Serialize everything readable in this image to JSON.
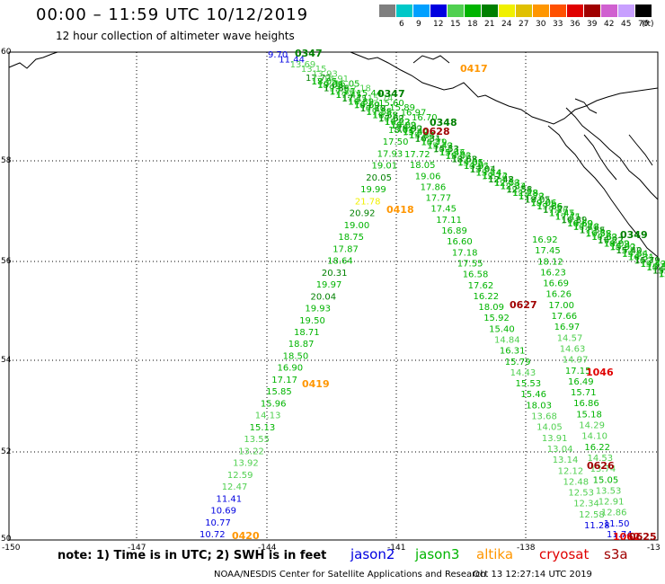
{
  "header": {
    "title": "00:00 – 11:59 UTC 10/12/2019",
    "subtitle": "12 hour collection of altimeter wave heights"
  },
  "legend": {
    "unit": "(ft)",
    "items": [
      {
        "label": "3",
        "color": "#7f7f7f"
      },
      {
        "label": "6",
        "color": "#00c8c8"
      },
      {
        "label": "9",
        "color": "#00a0ff"
      },
      {
        "label": "12",
        "color": "#0000e0"
      },
      {
        "label": "15",
        "color": "#50d050"
      },
      {
        "label": "18",
        "color": "#00b400"
      },
      {
        "label": "21",
        "color": "#008000"
      },
      {
        "label": "24",
        "color": "#f0f000"
      },
      {
        "label": "27",
        "color": "#e0c000"
      },
      {
        "label": "30",
        "color": "#ff9600"
      },
      {
        "label": "33",
        "color": "#ff5000"
      },
      {
        "label": "36",
        "color": "#e00000"
      },
      {
        "label": "39",
        "color": "#a00000"
      },
      {
        "label": "42",
        "color": "#d060d0"
      },
      {
        "label": "45",
        "color": "#c8a0ff"
      },
      {
        "label": "70",
        "color": "#000000"
      }
    ]
  },
  "axes": {
    "lon_labels": [
      "-150",
      "-147",
      "-144",
      "-141",
      "-138",
      "-13"
    ],
    "lat_labels": [
      "60",
      "58",
      "56",
      "54",
      "52",
      "50"
    ]
  },
  "tracks": {
    "track_a": {
      "time": "0420",
      "time_color": "#ff9600",
      "values": [
        {
          "v": "10.72",
          "c": "#0000e0"
        },
        {
          "v": "10.77",
          "c": "#0000e0"
        },
        {
          "v": "10.69",
          "c": "#0000e0"
        },
        {
          "v": "11.41",
          "c": "#0000e0"
        },
        {
          "v": "12.47",
          "c": "#50d050"
        },
        {
          "v": "12.59",
          "c": "#50d050"
        },
        {
          "v": "13.92",
          "c": "#50d050"
        },
        {
          "v": "13.22",
          "c": "#50d050"
        },
        {
          "v": "13.55",
          "c": "#50d050"
        },
        {
          "v": "15.13",
          "c": "#00b400"
        },
        {
          "v": "14.13",
          "c": "#50d050"
        },
        {
          "v": "15.96",
          "c": "#00b400"
        },
        {
          "v": "15.85",
          "c": "#00b400"
        },
        {
          "v": "17.17",
          "c": "#00b400"
        },
        {
          "v": "16.90",
          "c": "#00b400"
        },
        {
          "v": "18.50",
          "c": "#00b400"
        },
        {
          "v": "18.87",
          "c": "#00b400"
        },
        {
          "v": "18.71",
          "c": "#00b400"
        },
        {
          "v": "19.50",
          "c": "#00b400"
        },
        {
          "v": "19.93",
          "c": "#00b400"
        },
        {
          "v": "20.04",
          "c": "#008000"
        },
        {
          "v": "19.97",
          "c": "#00b400"
        },
        {
          "v": "20.31",
          "c": "#008000"
        },
        {
          "v": "18.64",
          "c": "#00b400"
        },
        {
          "v": "17.87",
          "c": "#00b400"
        },
        {
          "v": "18.75",
          "c": "#00b400"
        },
        {
          "v": "19.00",
          "c": "#00b400"
        },
        {
          "v": "20.92",
          "c": "#008000"
        },
        {
          "v": "21.78",
          "c": "#f0f000"
        },
        {
          "v": "19.99",
          "c": "#00b400"
        },
        {
          "v": "20.05",
          "c": "#008000"
        },
        {
          "v": "19.01",
          "c": "#00b400"
        },
        {
          "v": "17.93",
          "c": "#00b400"
        },
        {
          "v": "17.50",
          "c": "#00b400"
        },
        {
          "v": "18.01",
          "c": "#00b400"
        }
      ]
    },
    "track_a_times": [
      {
        "t": "0419",
        "c": "#ff9600"
      },
      {
        "t": "0418",
        "c": "#ff9600"
      }
    ],
    "track_b": {
      "values": [
        {
          "v": "17.72",
          "c": "#00b400"
        },
        {
          "v": "18.05",
          "c": "#00b400"
        },
        {
          "v": "19.06",
          "c": "#00b400"
        },
        {
          "v": "17.86",
          "c": "#00b400"
        },
        {
          "v": "17.77",
          "c": "#00b400"
        },
        {
          "v": "17.45",
          "c": "#00b400"
        },
        {
          "v": "17.11",
          "c": "#00b400"
        },
        {
          "v": "16.89",
          "c": "#00b400"
        },
        {
          "v": "16.60",
          "c": "#00b400"
        },
        {
          "v": "17.18",
          "c": "#00b400"
        },
        {
          "v": "17.55",
          "c": "#00b400"
        },
        {
          "v": "16.58",
          "c": "#00b400"
        },
        {
          "v": "17.62",
          "c": "#00b400"
        },
        {
          "v": "16.22",
          "c": "#00b400"
        },
        {
          "v": "18.09",
          "c": "#00b400"
        },
        {
          "v": "15.92",
          "c": "#00b400"
        },
        {
          "v": "15.40",
          "c": "#00b400"
        },
        {
          "v": "14.84",
          "c": "#50d050"
        },
        {
          "v": "16.31",
          "c": "#00b400"
        },
        {
          "v": "15.79",
          "c": "#00b400"
        },
        {
          "v": "14.43",
          "c": "#50d050"
        },
        {
          "v": "15.53",
          "c": "#00b400"
        },
        {
          "v": "15.46",
          "c": "#00b400"
        },
        {
          "v": "18.03",
          "c": "#00b400"
        },
        {
          "v": "13.68",
          "c": "#50d050"
        },
        {
          "v": "14.05",
          "c": "#50d050"
        },
        {
          "v": "13.91",
          "c": "#50d050"
        },
        {
          "v": "13.04",
          "c": "#50d050"
        },
        {
          "v": "13.14",
          "c": "#50d050"
        },
        {
          "v": "12.12",
          "c": "#50d050"
        },
        {
          "v": "12.48",
          "c": "#50d050"
        },
        {
          "v": "12.53",
          "c": "#50d050"
        },
        {
          "v": "12.34",
          "c": "#50d050"
        },
        {
          "v": "12.58",
          "c": "#50d050"
        },
        {
          "v": "11.28",
          "c": "#0000e0"
        }
      ],
      "time": "0627",
      "time_color": "#a00000"
    },
    "track_c": {
      "values": [
        {
          "v": "16.92",
          "c": "#00b400"
        },
        {
          "v": "17.45",
          "c": "#00b400"
        },
        {
          "v": "18.12",
          "c": "#00b400"
        },
        {
          "v": "16.23",
          "c": "#00b400"
        },
        {
          "v": "16.69",
          "c": "#00b400"
        },
        {
          "v": "16.26",
          "c": "#00b400"
        },
        {
          "v": "17.00",
          "c": "#00b400"
        },
        {
          "v": "17.66",
          "c": "#00b400"
        },
        {
          "v": "16.97",
          "c": "#00b400"
        },
        {
          "v": "14.57",
          "c": "#50d050"
        },
        {
          "v": "14.63",
          "c": "#50d050"
        },
        {
          "v": "14.97",
          "c": "#50d050"
        },
        {
          "v": "17.15",
          "c": "#00b400"
        },
        {
          "v": "16.49",
          "c": "#00b400"
        },
        {
          "v": "15.71",
          "c": "#00b400"
        },
        {
          "v": "16.86",
          "c": "#00b400"
        },
        {
          "v": "15.18",
          "c": "#00b400"
        },
        {
          "v": "14.29",
          "c": "#50d050"
        },
        {
          "v": "14.10",
          "c": "#50d050"
        },
        {
          "v": "16.22",
          "c": "#00b400"
        },
        {
          "v": "14.53",
          "c": "#50d050"
        },
        {
          "v": "13.74",
          "c": "#50d050"
        },
        {
          "v": "15.05",
          "c": "#00b400"
        },
        {
          "v": "13.53",
          "c": "#50d050"
        },
        {
          "v": "12.91",
          "c": "#50d050"
        },
        {
          "v": "12.86",
          "c": "#50d050"
        },
        {
          "v": "11.50",
          "c": "#0000e0"
        },
        {
          "v": "11.74",
          "c": "#0000e0"
        }
      ],
      "times": [
        {
          "t": "1046",
          "c": "#e00000"
        },
        {
          "t": "0626",
          "c": "#a00000"
        },
        {
          "t": "1062",
          "c": "#e00000"
        },
        {
          "t": "0625",
          "c": "#a00000"
        }
      ]
    },
    "track_north": {
      "values": [
        {
          "v": "9.70",
          "c": "#0000e0"
        },
        {
          "v": "11.44",
          "c": "#0000e0"
        },
        {
          "v": "13.69",
          "c": "#50d050"
        },
        {
          "v": "13.15",
          "c": "#50d050"
        },
        {
          "v": "13.93",
          "c": "#50d050"
        },
        {
          "v": "14.91",
          "c": "#50d050"
        },
        {
          "v": "16.05",
          "c": "#00b400"
        },
        {
          "v": "12.18",
          "c": "#50d050"
        },
        {
          "v": "15.44",
          "c": "#00b400"
        },
        {
          "v": "15.74",
          "c": "#50d050"
        },
        {
          "v": "15.60",
          "c": "#00b400"
        },
        {
          "v": "15.89",
          "c": "#00b400"
        },
        {
          "v": "16.97",
          "c": "#00b400"
        },
        {
          "v": "16.70",
          "c": "#00b400"
        }
      ],
      "times": [
        {
          "t": "0347",
          "c": "#008000"
        },
        {
          "t": "0347",
          "c": "#008000"
        },
        {
          "t": "0348",
          "c": "#008000"
        },
        {
          "t": "0628",
          "c": "#a00000"
        },
        {
          "t": "0417",
          "c": "#ff9600"
        },
        {
          "t": "0349",
          "c": "#008000"
        }
      ]
    }
  },
  "footer": {
    "note": "note: 1) Time is in UTC; 2) SWH is in feet",
    "satellites": [
      {
        "name": "jason2",
        "color": "#0000e0"
      },
      {
        "name": "jason3",
        "color": "#00b400"
      },
      {
        "name": "altika",
        "color": "#ff9600"
      },
      {
        "name": "cryosat",
        "color": "#e00000"
      },
      {
        "name": "s3a",
        "color": "#a00000"
      }
    ],
    "credit": "NOAA/NESDIS Center for Satellite Applications and Research",
    "timestamp": "Oct 13 12:27:14 UTC 2019"
  }
}
